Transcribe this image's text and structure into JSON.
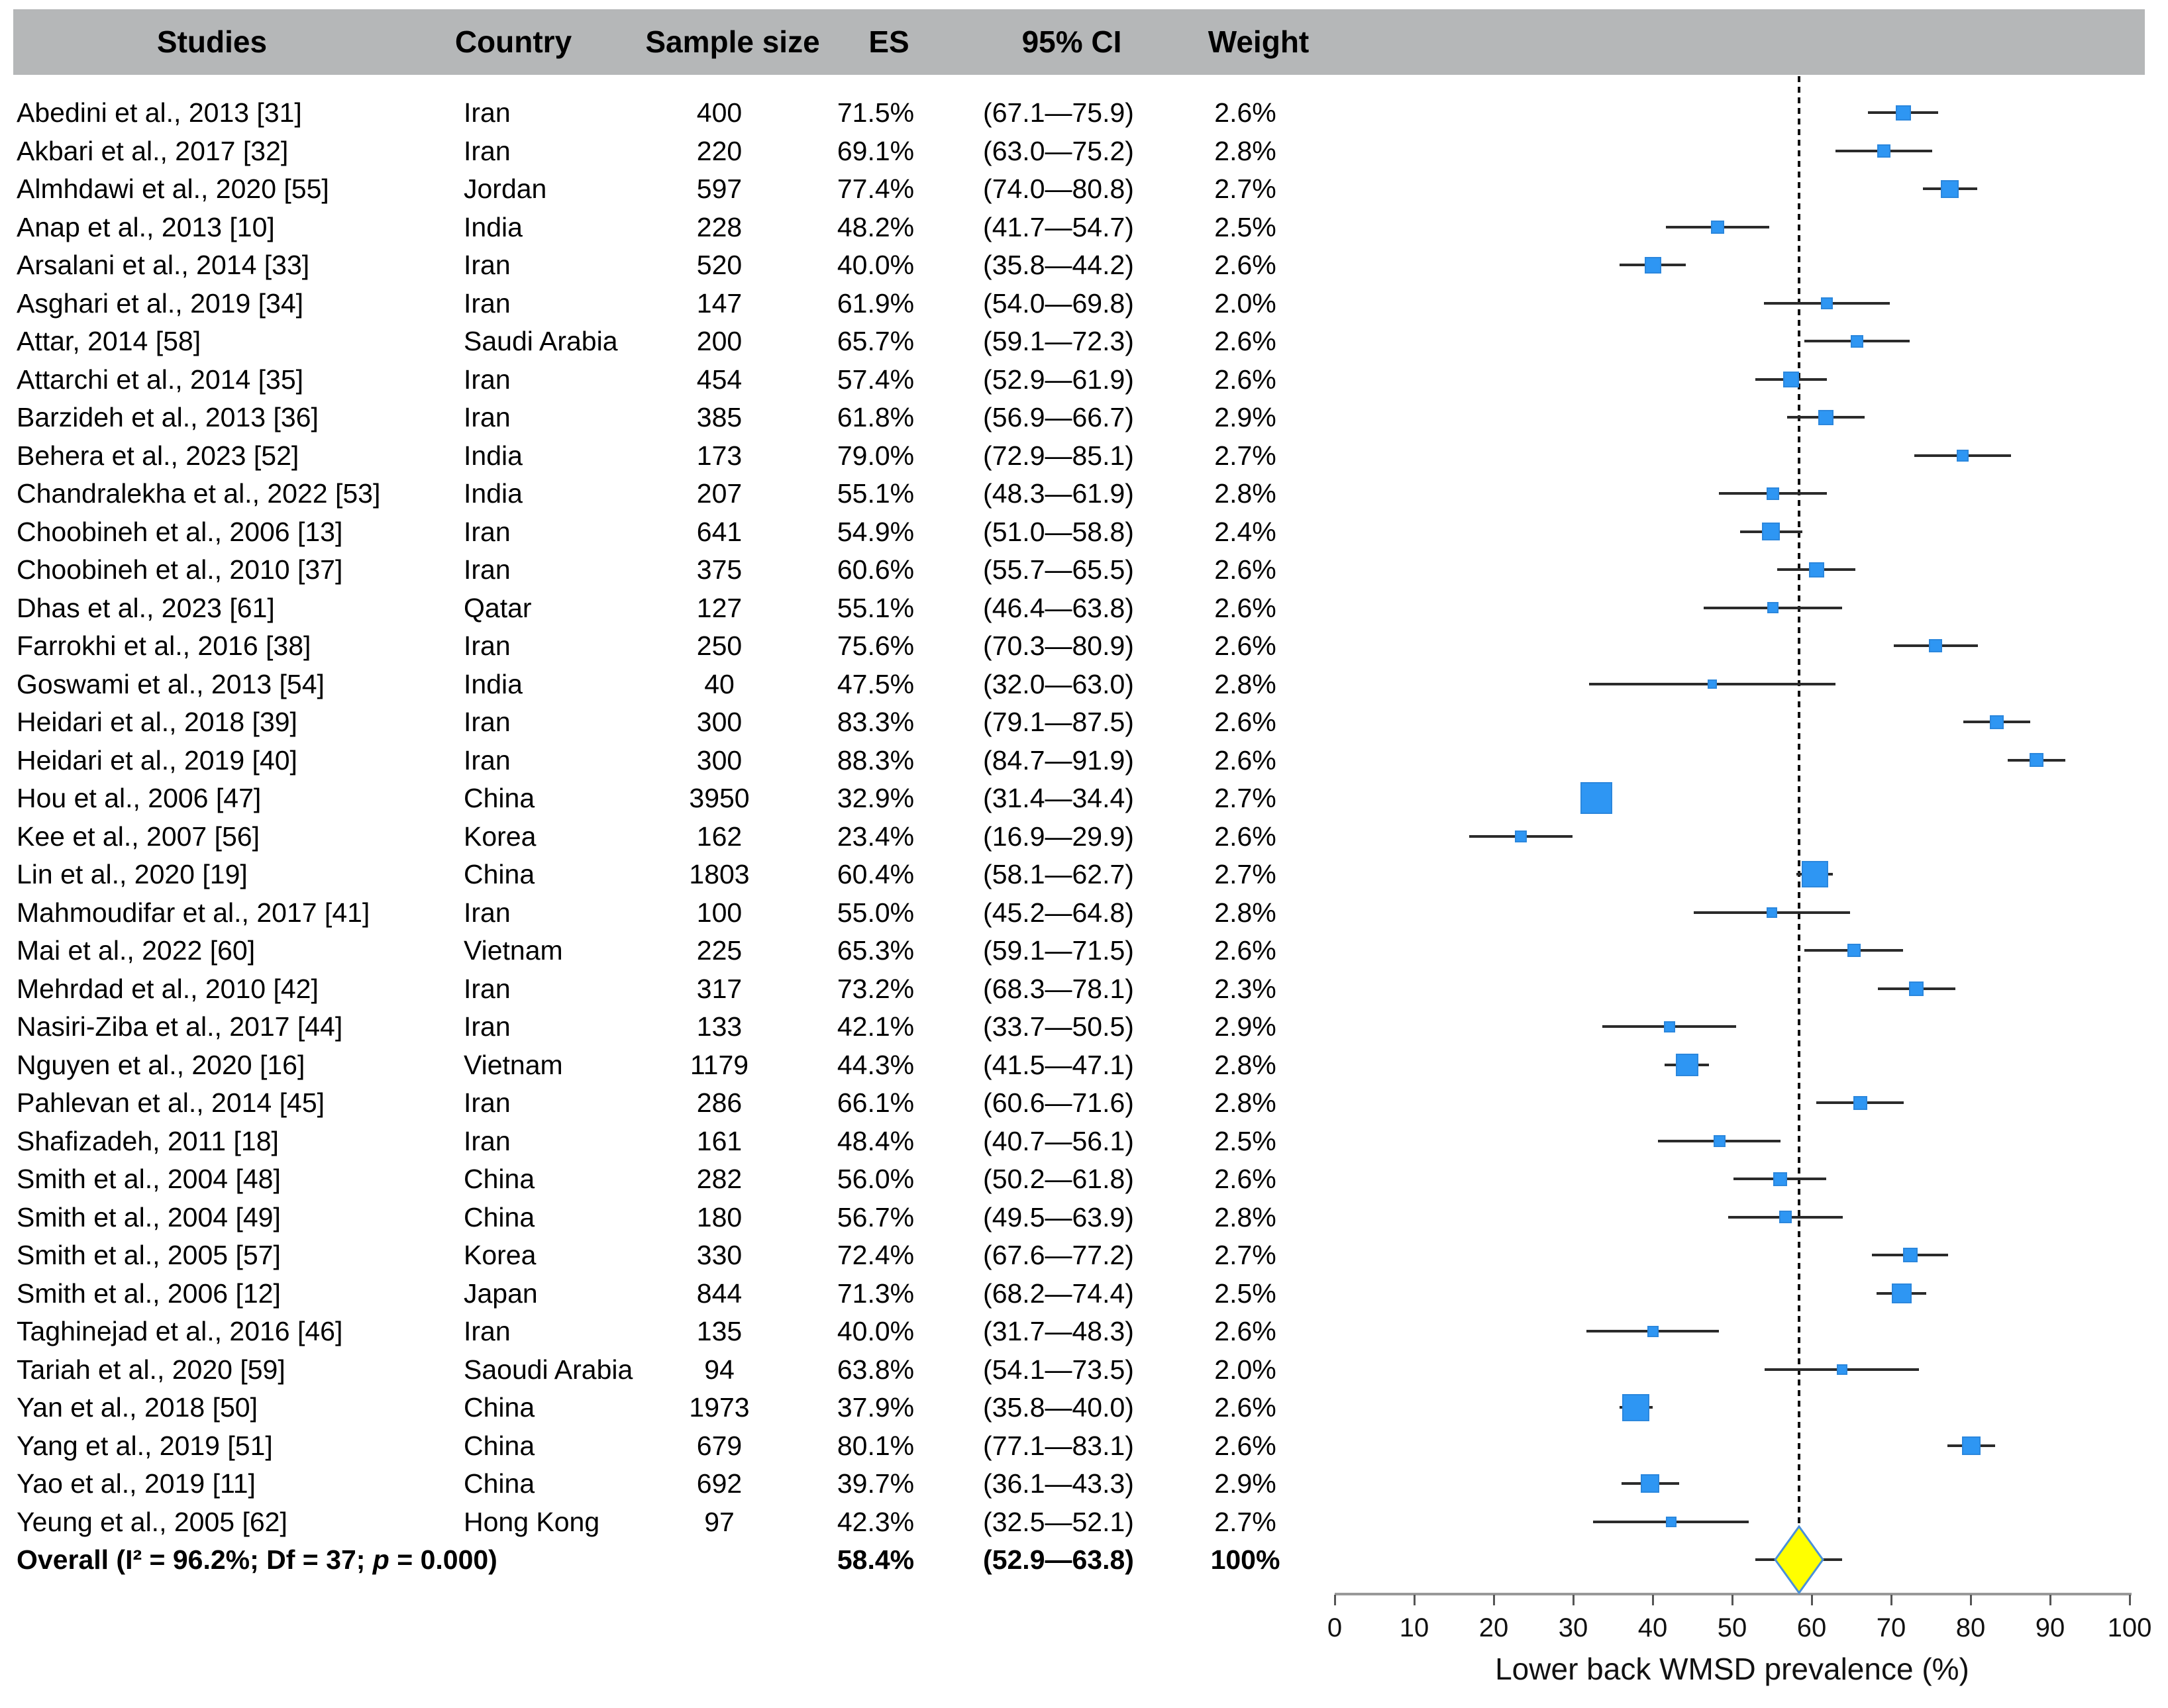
{
  "header": {
    "studies": "Studies",
    "country": "Country",
    "sample": "Sample size",
    "es": "ES",
    "ci": "95% CI",
    "weight": "Weight"
  },
  "colors": {
    "header_bg": "#B5B7B8",
    "marker": "#2E96F3",
    "marker_border": "#2B87DD",
    "ci_line": "#2B2B2B",
    "diamond": "#FFFF00",
    "diamond_border": "#4A90D9",
    "dashed_line": "#111111",
    "axis_line": "#999999",
    "tick": "#555555"
  },
  "chart_data": {
    "type": "scatter",
    "subtype": "forest-plot",
    "xlabel": "Lower back WMSD prevalence (%)",
    "xlim": [
      0,
      100
    ],
    "x_ticks": [
      0,
      10,
      20,
      30,
      40,
      50,
      60,
      70,
      80,
      90,
      100
    ],
    "reference_line": 58.4,
    "studies": [
      {
        "name": "Abedini et al., 2013 [31]",
        "country": "Iran",
        "n": 400,
        "es": 71.5,
        "lo": 67.1,
        "hi": 75.9,
        "w": 2.6
      },
      {
        "name": "Akbari et al., 2017 [32]",
        "country": "Iran",
        "n": 220,
        "es": 69.1,
        "lo": 63.0,
        "hi": 75.2,
        "w": 2.8
      },
      {
        "name": "Almhdawi et al., 2020 [55]",
        "country": "Jordan",
        "n": 597,
        "es": 77.4,
        "lo": 74.0,
        "hi": 80.8,
        "w": 2.7
      },
      {
        "name": "Anap et al., 2013 [10]",
        "country": "India",
        "n": 228,
        "es": 48.2,
        "lo": 41.7,
        "hi": 54.7,
        "w": 2.5
      },
      {
        "name": "Arsalani et al., 2014 [33]",
        "country": "Iran",
        "n": 520,
        "es": 40.0,
        "lo": 35.8,
        "hi": 44.2,
        "w": 2.6
      },
      {
        "name": "Asghari et al., 2019 [34]",
        "country": "Iran",
        "n": 147,
        "es": 61.9,
        "lo": 54.0,
        "hi": 69.8,
        "w": 2.0
      },
      {
        "name": "Attar, 2014 [58]",
        "country": "Saudi Arabia",
        "n": 200,
        "es": 65.7,
        "lo": 59.1,
        "hi": 72.3,
        "w": 2.6
      },
      {
        "name": "Attarchi et al., 2014 [35]",
        "country": "Iran",
        "n": 454,
        "es": 57.4,
        "lo": 52.9,
        "hi": 61.9,
        "w": 2.6
      },
      {
        "name": "Barzideh et al., 2013 [36]",
        "country": "Iran",
        "n": 385,
        "es": 61.8,
        "lo": 56.9,
        "hi": 66.7,
        "w": 2.9
      },
      {
        "name": "Behera et al., 2023 [52]",
        "country": "India",
        "n": 173,
        "es": 79.0,
        "lo": 72.9,
        "hi": 85.1,
        "w": 2.7
      },
      {
        "name": "Chandralekha et al., 2022 [53]",
        "country": "India",
        "n": 207,
        "es": 55.1,
        "lo": 48.3,
        "hi": 61.9,
        "w": 2.8
      },
      {
        "name": "Choobineh et al., 2006 [13]",
        "country": "Iran",
        "n": 641,
        "es": 54.9,
        "lo": 51.0,
        "hi": 58.8,
        "w": 2.4
      },
      {
        "name": "Choobineh et al., 2010 [37]",
        "country": "Iran",
        "n": 375,
        "es": 60.6,
        "lo": 55.7,
        "hi": 65.5,
        "w": 2.6
      },
      {
        "name": "Dhas et al., 2023 [61]",
        "country": "Qatar",
        "n": 127,
        "es": 55.1,
        "lo": 46.4,
        "hi": 63.8,
        "w": 2.6
      },
      {
        "name": "Farrokhi et al., 2016 [38]",
        "country": "Iran",
        "n": 250,
        "es": 75.6,
        "lo": 70.3,
        "hi": 80.9,
        "w": 2.6
      },
      {
        "name": "Goswami et al., 2013 [54]",
        "country": "India",
        "n": 40,
        "es": 47.5,
        "lo": 32.0,
        "hi": 63.0,
        "w": 2.8
      },
      {
        "name": "Heidari et al., 2018 [39]",
        "country": "Iran",
        "n": 300,
        "es": 83.3,
        "lo": 79.1,
        "hi": 87.5,
        "w": 2.6
      },
      {
        "name": "Heidari et al., 2019 [40]",
        "country": "Iran",
        "n": 300,
        "es": 88.3,
        "lo": 84.7,
        "hi": 91.9,
        "w": 2.6
      },
      {
        "name": "Hou et al., 2006 [47]",
        "country": "China",
        "n": 3950,
        "es": 32.9,
        "lo": 31.4,
        "hi": 34.4,
        "w": 2.7
      },
      {
        "name": "Kee et al., 2007 [56]",
        "country": "Korea",
        "n": 162,
        "es": 23.4,
        "lo": 16.9,
        "hi": 29.9,
        "w": 2.6
      },
      {
        "name": "Lin et al., 2020 [19]",
        "country": "China",
        "n": 1803,
        "es": 60.4,
        "lo": 58.1,
        "hi": 62.7,
        "w": 2.7
      },
      {
        "name": "Mahmoudifar et al., 2017 [41]",
        "country": "Iran",
        "n": 100,
        "es": 55.0,
        "lo": 45.2,
        "hi": 64.8,
        "w": 2.8
      },
      {
        "name": "Mai et al., 2022 [60]",
        "country": "Vietnam",
        "n": 225,
        "es": 65.3,
        "lo": 59.1,
        "hi": 71.5,
        "w": 2.6
      },
      {
        "name": "Mehrdad et al., 2010 [42]",
        "country": "Iran",
        "n": 317,
        "es": 73.2,
        "lo": 68.3,
        "hi": 78.1,
        "w": 2.3
      },
      {
        "name": "Nasiri-Ziba et al., 2017 [44]",
        "country": "Iran",
        "n": 133,
        "es": 42.1,
        "lo": 33.7,
        "hi": 50.5,
        "w": 2.9
      },
      {
        "name": "Nguyen et al., 2020 [16]",
        "country": "Vietnam",
        "n": 1179,
        "es": 44.3,
        "lo": 41.5,
        "hi": 47.1,
        "w": 2.8
      },
      {
        "name": "Pahlevan et al., 2014 [45]",
        "country": "Iran",
        "n": 286,
        "es": 66.1,
        "lo": 60.6,
        "hi": 71.6,
        "w": 2.8
      },
      {
        "name": "Shafizadeh, 2011 [18]",
        "country": "Iran",
        "n": 161,
        "es": 48.4,
        "lo": 40.7,
        "hi": 56.1,
        "w": 2.5
      },
      {
        "name": "Smith et al., 2004 [48]",
        "country": "China",
        "n": 282,
        "es": 56.0,
        "lo": 50.2,
        "hi": 61.8,
        "w": 2.6
      },
      {
        "name": "Smith et al., 2004 [49]",
        "country": "China",
        "n": 180,
        "es": 56.7,
        "lo": 49.5,
        "hi": 63.9,
        "w": 2.8
      },
      {
        "name": "Smith et al., 2005 [57]",
        "country": "Korea",
        "n": 330,
        "es": 72.4,
        "lo": 67.6,
        "hi": 77.2,
        "w": 2.7
      },
      {
        "name": "Smith et al., 2006 [12]",
        "country": "Japan",
        "n": 844,
        "es": 71.3,
        "lo": 68.2,
        "hi": 74.4,
        "w": 2.5
      },
      {
        "name": "Taghinejad et al., 2016 [46]",
        "country": "Iran",
        "n": 135,
        "es": 40.0,
        "lo": 31.7,
        "hi": 48.3,
        "w": 2.6
      },
      {
        "name": "Tariah et al., 2020 [59]",
        "country": "Saoudi Arabia",
        "n": 94,
        "es": 63.8,
        "lo": 54.1,
        "hi": 73.5,
        "w": 2.0
      },
      {
        "name": "Yan et al., 2018 [50]",
        "country": "China",
        "n": 1973,
        "es": 37.9,
        "lo": 35.8,
        "hi": 40.0,
        "w": 2.6
      },
      {
        "name": "Yang et al., 2019 [51]",
        "country": "China",
        "n": 679,
        "es": 80.1,
        "lo": 77.1,
        "hi": 83.1,
        "w": 2.6
      },
      {
        "name": "Yao et al., 2019 [11]",
        "country": "China",
        "n": 692,
        "es": 39.7,
        "lo": 36.1,
        "hi": 43.3,
        "w": 2.9
      },
      {
        "name": "Yeung et al., 2005 [62]",
        "country": "Hong Kong",
        "n": 97,
        "es": 42.3,
        "lo": 32.5,
        "hi": 52.1,
        "w": 2.7
      }
    ],
    "overall": {
      "label_pre": "Overall (I² = 96.2%; Df = 37; ",
      "label_p": "p",
      "label_post": " = 0.000)",
      "es": 58.4,
      "lo": 52.9,
      "hi": 63.8,
      "weight_label": "100%"
    }
  }
}
